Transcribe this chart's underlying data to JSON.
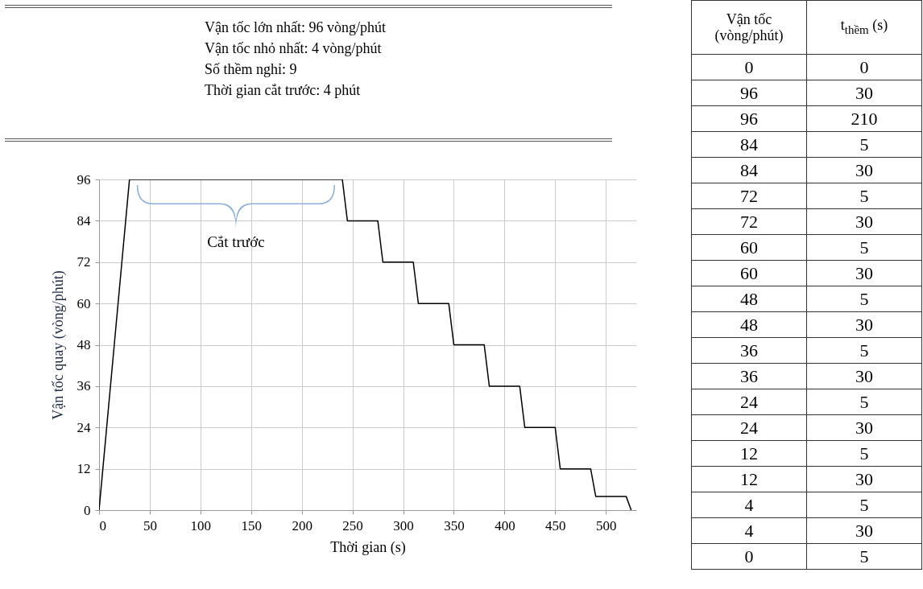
{
  "chart_data": [
    {
      "type": "line",
      "xlabel": "Thời gian (s)",
      "ylabel": "Vận tốc quay (vòng/phút)",
      "annotations": [
        "Cắt trước"
      ],
      "x": [
        0,
        30,
        240,
        245,
        275,
        280,
        310,
        315,
        345,
        350,
        380,
        385,
        415,
        420,
        450,
        455,
        485,
        490,
        520,
        525
      ],
      "series": [
        {
          "color": "#000000",
          "values": [
            0,
            96,
            96,
            84,
            84,
            72,
            72,
            60,
            60,
            48,
            48,
            36,
            36,
            24,
            24,
            12,
            12,
            4,
            4,
            0
          ]
        }
      ],
      "xlim": [
        0,
        530
      ],
      "xticks": [
        0,
        50,
        100,
        150,
        200,
        250,
        300,
        350,
        400,
        450,
        500
      ],
      "ylim": [
        0,
        96
      ],
      "yticks": [
        0,
        12,
        24,
        36,
        48,
        60,
        72,
        84,
        96
      ],
      "grid": true,
      "marker": "none",
      "line_style": "solid"
    },
    {
      "type": "other",
      "annotations": [
        "Vận tốc lớn nhất: 96 vòng/phút",
        "Vận tốc nhỏ nhất: 4 vòng/phút",
        "Số thềm nghỉ: 9",
        "Thời gian cắt trước: 4 phút"
      ],
      "categories": [
        "Vận tốc (vòng/phút)",
        "t$_{thềm}$ (s)"
      ],
      "cell_labels": [
        [
          "0",
          "0"
        ],
        [
          "96",
          "30"
        ],
        [
          "96",
          "210"
        ],
        [
          "84",
          "5"
        ],
        [
          "84",
          "30"
        ],
        [
          "72",
          "5"
        ],
        [
          "72",
          "30"
        ],
        [
          "60",
          "5"
        ],
        [
          "60",
          "30"
        ],
        [
          "48",
          "5"
        ],
        [
          "48",
          "30"
        ],
        [
          "36",
          "5"
        ],
        [
          "36",
          "30"
        ],
        [
          "24",
          "5"
        ],
        [
          "24",
          "30"
        ],
        [
          "12",
          "5"
        ],
        [
          "12",
          "30"
        ],
        [
          "4",
          "5"
        ],
        [
          "4",
          "30"
        ],
        [
          "0",
          "5"
        ]
      ]
    }
  ]
}
